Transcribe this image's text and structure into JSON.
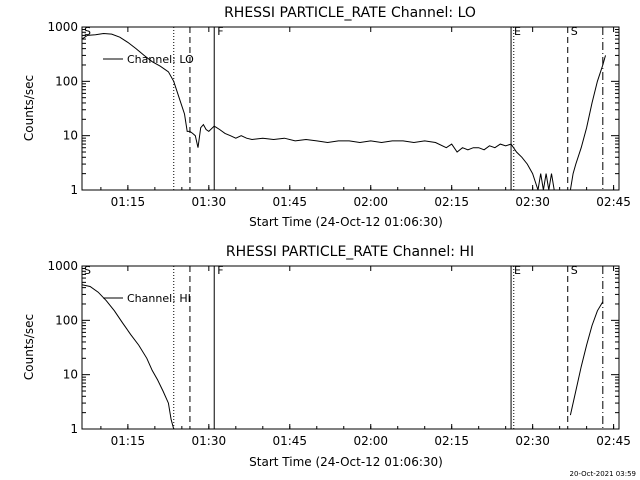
{
  "timestamp": "20-Oct-2021 03:59",
  "chart_data": [
    {
      "type": "line",
      "title": "RHESSI PARTICLE_RATE Channel: LO",
      "xlabel": "Start Time (24-Oct-12 01:06:30)",
      "ylabel": "Counts/sec",
      "yscale": "log",
      "ylim": [
        1,
        1000
      ],
      "xlim": [
        "01:06:30",
        "02:46:00"
      ],
      "xticks": [
        "01:15",
        "01:30",
        "01:45",
        "02:00",
        "02:15",
        "02:30",
        "02:45"
      ],
      "yticks": [
        "1",
        "10",
        "100",
        "1000"
      ],
      "legend": {
        "label": "Channel: LO",
        "placement": "top-left"
      },
      "markers": [
        {
          "label": "S",
          "time": "01:06:30",
          "style": "solid"
        },
        {
          "label": "",
          "time": "01:23:30",
          "style": "dotted"
        },
        {
          "label": "",
          "time": "01:26:30",
          "style": "dashed"
        },
        {
          "label": "F",
          "time": "01:31:00",
          "style": "solid"
        },
        {
          "label": "E",
          "time": "02:26:00",
          "style": "solid"
        },
        {
          "label": "",
          "time": "02:26:30",
          "style": "dotted"
        },
        {
          "label": "S",
          "time": "02:36:30",
          "style": "dashed"
        },
        {
          "label": "",
          "time": "02:43:00",
          "style": "dashdot"
        }
      ],
      "series": [
        {
          "name": "Channel: LO",
          "segments": [
            [
              [
                "01:06:30",
                600
              ],
              [
                "01:07:30",
                700
              ],
              [
                "01:09:00",
                720
              ],
              [
                "01:10:30",
                760
              ],
              [
                "01:12:00",
                740
              ],
              [
                "01:13:30",
                650
              ],
              [
                "01:15:00",
                520
              ],
              [
                "01:16:30",
                400
              ],
              [
                "01:18:00",
                300
              ],
              [
                "01:19:30",
                230
              ],
              [
                "01:21:00",
                190
              ],
              [
                "01:22:30",
                150
              ],
              [
                "01:23:30",
                100
              ],
              [
                "01:24:30",
                50
              ],
              [
                "01:25:30",
                25
              ],
              [
                "01:26:00",
                12
              ],
              [
                "01:26:30",
                12
              ],
              [
                "01:27:00",
                11
              ],
              [
                "01:27:30",
                10
              ],
              [
                "01:28:00",
                6
              ],
              [
                "01:28:30",
                14
              ],
              [
                "01:29:00",
                16
              ],
              [
                "01:29:30",
                13
              ],
              [
                "01:30:00",
                12
              ],
              [
                "01:31:00",
                15
              ],
              [
                "01:32:00",
                13
              ],
              [
                "01:33:00",
                11
              ],
              [
                "01:34:00",
                10
              ],
              [
                "01:35:00",
                9
              ],
              [
                "01:36:00",
                10
              ],
              [
                "01:37:00",
                9
              ],
              [
                "01:38:00",
                8.5
              ],
              [
                "01:40:00",
                9
              ],
              [
                "01:42:00",
                8.5
              ],
              [
                "01:44:00",
                9
              ],
              [
                "01:46:00",
                8
              ],
              [
                "01:48:00",
                8.5
              ],
              [
                "01:50:00",
                8
              ],
              [
                "01:52:00",
                7.5
              ],
              [
                "01:54:00",
                8
              ],
              [
                "01:56:00",
                8
              ],
              [
                "01:58:00",
                7.5
              ],
              [
                "02:00:00",
                8
              ],
              [
                "02:02:00",
                7.5
              ],
              [
                "02:04:00",
                8
              ],
              [
                "02:06:00",
                8
              ],
              [
                "02:08:00",
                7.5
              ],
              [
                "02:10:00",
                8
              ],
              [
                "02:12:00",
                7.5
              ],
              [
                "02:14:00",
                6
              ],
              [
                "02:15:00",
                7
              ],
              [
                "02:16:00",
                5
              ],
              [
                "02:17:00",
                6
              ],
              [
                "02:18:00",
                5.5
              ],
              [
                "02:19:00",
                6
              ],
              [
                "02:20:00",
                6
              ],
              [
                "02:21:00",
                5.5
              ],
              [
                "02:22:00",
                6.5
              ],
              [
                "02:23:00",
                6
              ],
              [
                "02:24:00",
                7
              ],
              [
                "02:25:00",
                6.5
              ],
              [
                "02:26:00",
                7
              ],
              [
                "02:27:00",
                5
              ],
              [
                "02:28:00",
                4
              ],
              [
                "02:29:00",
                3
              ],
              [
                "02:30:00",
                2
              ],
              [
                "02:31:00",
                1
              ],
              [
                "02:31:30",
                2
              ],
              [
                "02:32:00",
                1
              ],
              [
                "02:32:30",
                2
              ],
              [
                "02:33:00",
                1
              ],
              [
                "02:33:30",
                2
              ],
              [
                "02:34:00",
                1
              ],
              [
                "02:35:00",
                1
              ]
            ],
            [
              [
                "02:37:00",
                1
              ],
              [
                "02:37:30",
                2
              ],
              [
                "02:38:00",
                3
              ],
              [
                "02:39:00",
                6
              ],
              [
                "02:40:00",
                14
              ],
              [
                "02:41:00",
                40
              ],
              [
                "02:42:00",
                100
              ],
              [
                "02:43:00",
                200
              ],
              [
                "02:43:30",
                300
              ]
            ]
          ]
        }
      ]
    },
    {
      "type": "line",
      "title": "RHESSI PARTICLE_RATE Channel: HI",
      "xlabel": "Start Time (24-Oct-12 01:06:30)",
      "ylabel": "Counts/sec",
      "yscale": "log",
      "ylim": [
        1,
        1000
      ],
      "xlim": [
        "01:06:30",
        "02:46:00"
      ],
      "xticks": [
        "01:15",
        "01:30",
        "01:45",
        "02:00",
        "02:15",
        "02:30",
        "02:45"
      ],
      "yticks": [
        "1",
        "10",
        "100",
        "1000"
      ],
      "legend": {
        "label": "Channel: HI",
        "placement": "top-left"
      },
      "markers": [
        {
          "label": "S",
          "time": "01:06:30",
          "style": "solid"
        },
        {
          "label": "",
          "time": "01:23:30",
          "style": "dotted"
        },
        {
          "label": "",
          "time": "01:26:30",
          "style": "dashed"
        },
        {
          "label": "F",
          "time": "01:31:00",
          "style": "solid"
        },
        {
          "label": "E",
          "time": "02:26:00",
          "style": "solid"
        },
        {
          "label": "",
          "time": "02:26:30",
          "style": "dotted"
        },
        {
          "label": "S",
          "time": "02:36:30",
          "style": "dashed"
        },
        {
          "label": "",
          "time": "02:43:00",
          "style": "dashdot"
        }
      ],
      "series": [
        {
          "name": "Channel: HI",
          "segments": [
            [
              [
                "01:06:30",
                450
              ],
              [
                "01:08:00",
                420
              ],
              [
                "01:09:30",
                330
              ],
              [
                "01:11:00",
                230
              ],
              [
                "01:12:30",
                150
              ],
              [
                "01:14:00",
                90
              ],
              [
                "01:15:30",
                55
              ],
              [
                "01:17:00",
                35
              ],
              [
                "01:18:30",
                20
              ],
              [
                "01:19:30",
                12
              ],
              [
                "01:20:30",
                8
              ],
              [
                "01:21:30",
                5
              ],
              [
                "01:22:30",
                3
              ],
              [
                "01:23:00",
                1.5
              ],
              [
                "01:23:30",
                1
              ]
            ],
            [
              [
                "02:37:00",
                1.8
              ],
              [
                "02:38:00",
                5
              ],
              [
                "02:39:00",
                14
              ],
              [
                "02:40:00",
                35
              ],
              [
                "02:41:00",
                80
              ],
              [
                "02:42:00",
                150
              ],
              [
                "02:43:00",
                220
              ]
            ]
          ]
        }
      ]
    }
  ]
}
